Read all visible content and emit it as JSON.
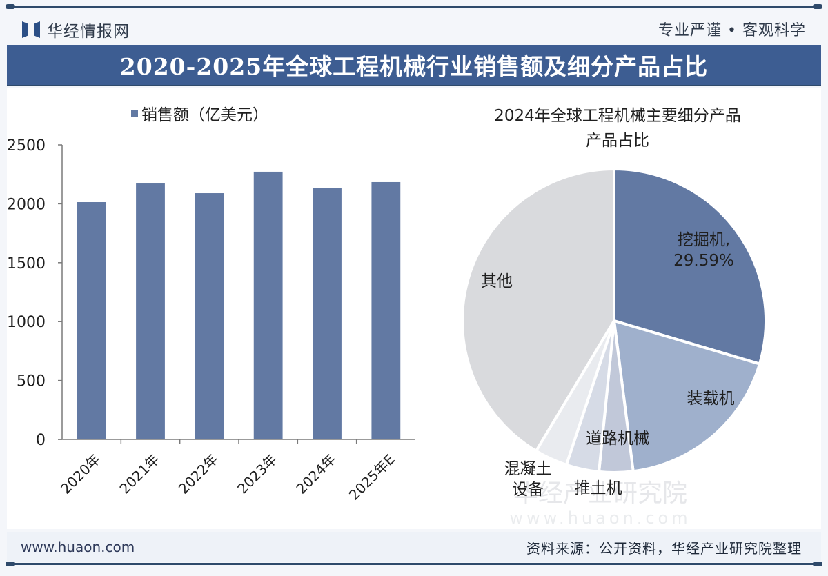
{
  "header": {
    "logo_text": "华经情报网",
    "slogan": "专业严谨 • 客观科学"
  },
  "title": "2020-2025年全球工程机械行业销售额及细分产品占比",
  "footer": {
    "url": "www.huaon.com",
    "source": "资料来源：公开资料，华经产业研究院整理"
  },
  "watermark": {
    "name": "华经产业研究院",
    "url": "www.huaon.com"
  },
  "colors": {
    "bar": "#6279a3",
    "title_bg": "#3d5d92",
    "pie": [
      "#6279a3",
      "#9fb0cc",
      "#c1c8d9",
      "#d6dbe6",
      "#e9ebef",
      "#d9dadd"
    ]
  },
  "chart_data": [
    {
      "type": "bar",
      "title": "",
      "legend": "销售额（亿美元）",
      "legend_position": "top",
      "categories": [
        "2020年",
        "2021年",
        "2022年",
        "2023年",
        "2024年",
        "2025年E"
      ],
      "series": [
        {
          "name": "销售额（亿美元）",
          "values": [
            2014,
            2172,
            2090,
            2272,
            2137,
            2184
          ]
        }
      ],
      "xlabel": "",
      "ylabel": "",
      "ylim": [
        0,
        2500
      ],
      "yticks": [
        "0",
        "500",
        "1000",
        "1500",
        "2000",
        "2500"
      ],
      "grid": false
    },
    {
      "type": "pie",
      "title": "2024年全球工程机械主要细分产品占比",
      "title_lines": [
        "2024年全球工程机械主要细分产品",
        "产品占比"
      ],
      "slices": [
        {
          "label": "挖掘机",
          "value": 29.59,
          "data_label": "29.59%"
        },
        {
          "label": "装载机",
          "value": 18.4
        },
        {
          "label": "道路机械",
          "value": 3.6
        },
        {
          "label": "推土机",
          "value": 3.5
        },
        {
          "label": "混凝土设备",
          "value": 3.5
        },
        {
          "label": "其他",
          "value": 41.41
        }
      ],
      "start_angle": "12 o'clock, clockwise"
    }
  ]
}
